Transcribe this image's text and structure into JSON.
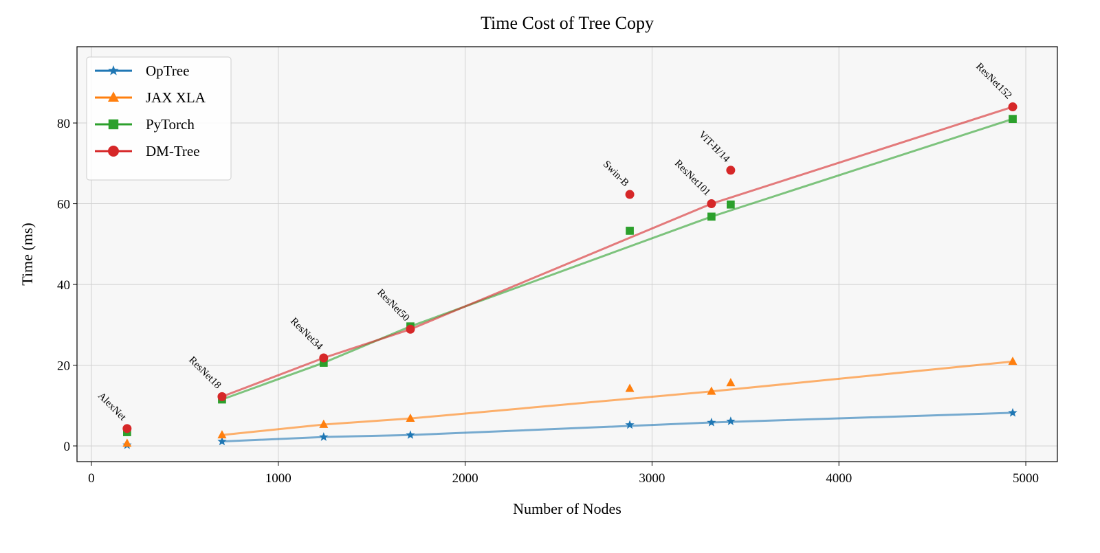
{
  "chart_data": {
    "type": "line",
    "title": "Time Cost of Tree Copy",
    "xlabel": "Number of Nodes",
    "ylabel": "Time (ms)",
    "categories": [
      "AlexNet",
      "ResNet18",
      "ResNet34",
      "ResNet50",
      "Swin-B",
      "ResNet101",
      "ViT-H/14",
      "ResNet152"
    ],
    "x": [
      191,
      699,
      1243,
      1707,
      2881,
      3318,
      3421,
      4930
    ],
    "connected": [
      1,
      2,
      3,
      5,
      7
    ],
    "series": [
      {
        "name": "OpTree",
        "color": "#1f77b4",
        "marker": "star",
        "values": [
          0.2,
          1.1,
          2.2,
          2.7,
          5.2,
          5.8,
          6.1,
          8.2
        ]
      },
      {
        "name": "JAX XLA",
        "color": "#ff7f0e",
        "marker": "triangle",
        "values": [
          0.6,
          2.7,
          5.3,
          6.8,
          14.2,
          13.5,
          15.6,
          20.9
        ]
      },
      {
        "name": "PyTorch",
        "color": "#2ca02c",
        "marker": "square",
        "values": [
          3.4,
          11.5,
          20.6,
          29.6,
          53.3,
          56.8,
          59.8,
          81.0
        ]
      },
      {
        "name": "DM-Tree",
        "color": "#d62728",
        "marker": "circle",
        "values": [
          4.3,
          12.2,
          21.8,
          28.9,
          62.3,
          60.0,
          68.3,
          84.0
        ]
      }
    ],
    "xlim": [
      -77,
      5169
    ],
    "ylim": [
      -3.9,
      98.9
    ],
    "xticks": [
      0,
      1000,
      2000,
      3000,
      4000,
      5000
    ],
    "yticks": [
      0,
      20,
      40,
      60,
      80
    ],
    "grid": true,
    "legend": "upper left"
  }
}
